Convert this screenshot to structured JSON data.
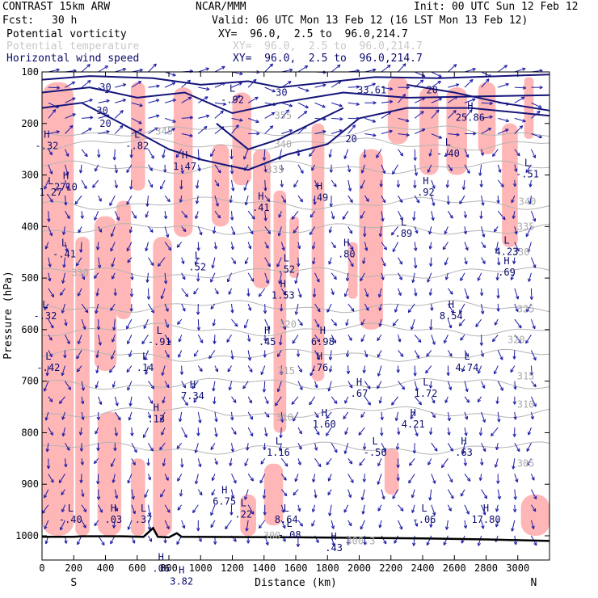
{
  "header": {
    "model": "CONTRAST 15km ARW",
    "org": "NCAR/MMM",
    "init": "Init: 00 UTC Sun 12 Feb 12",
    "fcst_label": "Fcst:",
    "fcst_value": "30 h",
    "valid": "Valid: 06 UTC Mon 13 Feb 12 (16 LST Mon 13 Feb 12)"
  },
  "fields": [
    {
      "name": "Potential vorticity",
      "xy": "XY=  96.0,  2.5 to  96.0,214.7",
      "color": "#000000"
    },
    {
      "name": "Potential temperature",
      "xy": "XY=  96.0,  2.5 to  96.0,214.7",
      "color": "#c8c8c8"
    },
    {
      "name": "Horizontal wind speed",
      "xy": "XY=  96.0,  2.5 to  96.0,214.7",
      "color": "#0a0a6e"
    }
  ],
  "colors": {
    "pv_fill": "#ffb6b6",
    "theta_contour": "#b4b4b4",
    "wind_vector": "#1a1aa6",
    "wind_contour": "#14147a",
    "terrain": "#000000"
  },
  "chart_data": {
    "type": "cross-section",
    "ylabel": "Pressure (hPa)",
    "xlabel": "Distance (km)",
    "x_end_labels": {
      "left": "S",
      "right": "N"
    },
    "xlim": [
      0,
      3200
    ],
    "ylim": [
      1050,
      100
    ],
    "x_ticks": [
      0,
      200,
      400,
      600,
      800,
      1000,
      1200,
      1400,
      1600,
      1800,
      2000,
      2200,
      2400,
      2600,
      2800,
      3000
    ],
    "y_ticks": [
      100,
      200,
      300,
      400,
      500,
      600,
      700,
      800,
      900,
      1000
    ],
    "pv_regions": [
      {
        "x": [
          0,
          200
        ],
        "p": [
          120,
          1000
        ]
      },
      {
        "x": [
          210,
          300
        ],
        "p": [
          420,
          1000
        ]
      },
      {
        "x": [
          330,
          470
        ],
        "p": [
          380,
          680
        ]
      },
      {
        "x": [
          470,
          560
        ],
        "p": [
          350,
          580
        ]
      },
      {
        "x": [
          560,
          650
        ],
        "p": [
          120,
          330
        ]
      },
      {
        "x": [
          700,
          820
        ],
        "p": [
          420,
          1000
        ]
      },
      {
        "x": [
          830,
          950
        ],
        "p": [
          130,
          420
        ]
      },
      {
        "x": [
          1070,
          1180
        ],
        "p": [
          240,
          400
        ]
      },
      {
        "x": [
          1200,
          1320
        ],
        "p": [
          140,
          320
        ]
      },
      {
        "x": [
          1330,
          1440
        ],
        "p": [
          250,
          520
        ]
      },
      {
        "x": [
          1460,
          1540
        ],
        "p": [
          330,
          800
        ]
      },
      {
        "x": [
          1560,
          1620
        ],
        "p": [
          380,
          500
        ]
      },
      {
        "x": [
          1700,
          1780
        ],
        "p": [
          200,
          700
        ]
      },
      {
        "x": [
          2000,
          2150
        ],
        "p": [
          250,
          600
        ]
      },
      {
        "x": [
          2180,
          2310
        ],
        "p": [
          110,
          240
        ]
      },
      {
        "x": [
          2380,
          2500
        ],
        "p": [
          130,
          300
        ]
      },
      {
        "x": [
          2550,
          2680
        ],
        "p": [
          130,
          300
        ]
      },
      {
        "x": [
          2750,
          2860
        ],
        "p": [
          120,
          260
        ]
      },
      {
        "x": [
          2900,
          3000
        ],
        "p": [
          200,
          440
        ]
      },
      {
        "x": [
          3040,
          3100
        ],
        "p": [
          110,
          230
        ]
      },
      {
        "x": [
          350,
          500
        ],
        "p": [
          760,
          1000
        ]
      },
      {
        "x": [
          560,
          650
        ],
        "p": [
          850,
          1000
        ]
      },
      {
        "x": [
          1250,
          1350
        ],
        "p": [
          920,
          1000
        ]
      },
      {
        "x": [
          1400,
          1520
        ],
        "p": [
          860,
          980
        ]
      },
      {
        "x": [
          2160,
          2250
        ],
        "p": [
          830,
          920
        ]
      },
      {
        "x": [
          1930,
          1990
        ],
        "p": [
          430,
          540
        ]
      },
      {
        "x": [
          3020,
          3200
        ],
        "p": [
          920,
          1000
        ]
      }
    ],
    "theta_contours": [
      {
        "level": "345",
        "p": 215,
        "label_x": 770
      },
      {
        "level": "340",
        "p": 240,
        "label_x": 1520
      },
      {
        "level": "335",
        "p": 285,
        "label_x": 1530
      },
      {
        "level": "330",
        "p": 355,
        "label_x": 1480
      },
      {
        "level": "325",
        "p": 405,
        "label_x": 1480
      },
      {
        "level": "320",
        "p": 490,
        "label_x": 160
      },
      {
        "level": "315",
        "p": 555,
        "label_x": 1620
      },
      {
        "level": "310",
        "p": 600,
        "label_x": 2990
      },
      {
        "level": "305",
        "p": 650,
        "label_x": 2350
      },
      {
        "level": "300",
        "p": 705,
        "label_x": 1470
      },
      {
        "level": "295",
        "p": 760,
        "label_x": 1540
      },
      {
        "level": "290",
        "p": 830,
        "label_x": 3010
      }
    ],
    "theta_labels": [
      {
        "text": "345",
        "x": 770,
        "p": 215
      },
      {
        "text": "340",
        "x": 1520,
        "p": 240
      },
      {
        "text": "340",
        "x": 3060,
        "p": 352
      },
      {
        "text": "335",
        "x": 1470,
        "p": 290
      },
      {
        "text": "335",
        "x": 3050,
        "p": 400
      },
      {
        "text": "330",
        "x": 240,
        "p": 490
      },
      {
        "text": "330",
        "x": 3020,
        "p": 450
      },
      {
        "text": "325",
        "x": 3050,
        "p": 560
      },
      {
        "text": "320",
        "x": 1550,
        "p": 590
      },
      {
        "text": "320",
        "x": 2990,
        "p": 620
      },
      {
        "text": "315",
        "x": 1540,
        "p": 680
      },
      {
        "text": "315",
        "x": 3050,
        "p": 690
      },
      {
        "text": "310",
        "x": 1530,
        "p": 770
      },
      {
        "text": "310",
        "x": 3050,
        "p": 745
      },
      {
        "text": "305",
        "x": 3050,
        "p": 860
      },
      {
        "text": "300",
        "x": 1450,
        "p": 1000
      },
      {
        "text": "300.3",
        "x": 2010,
        "p": 1010
      },
      {
        "text": "355",
        "x": 1520,
        "p": 185
      }
    ],
    "wind_contours": [
      {
        "label": "30",
        "x": 400,
        "p": 130
      },
      {
        "label": "30",
        "x": 1510,
        "p": 140
      },
      {
        "label": "30",
        "x": 380,
        "p": 175
      },
      {
        "label": "20",
        "x": 400,
        "p": 200
      },
      {
        "label": "20",
        "x": 1950,
        "p": 230
      },
      {
        "label": "33.61",
        "x": 2080,
        "p": 135
      },
      {
        "label": "20",
        "x": 2460,
        "p": 135
      }
    ],
    "extrema": [
      {
        "type": "H",
        "value": "-.32",
        "x": 30,
        "p": 250
      },
      {
        "type": "H",
        "value": "2710",
        "x": 150,
        "p": 330
      },
      {
        "type": "L",
        "value": "1.27",
        "x": 55,
        "p": 340
      },
      {
        "type": "L",
        "value": "-.41",
        "x": 140,
        "p": 460
      },
      {
        "type": "L",
        "value": "-.82",
        "x": 600,
        "p": 250
      },
      {
        "type": "H",
        "value": "1.47",
        "x": 900,
        "p": 290
      },
      {
        "type": "L",
        "value": "-.92",
        "x": 1200,
        "p": 160
      },
      {
        "type": "L",
        "value": ".52",
        "x": 980,
        "p": 485
      },
      {
        "type": "H",
        "value": ".41",
        "x": 1380,
        "p": 370
      },
      {
        "type": "H",
        "value": ".49",
        "x": 1750,
        "p": 350
      },
      {
        "type": "L",
        "value": ".52",
        "x": 1540,
        "p": 490
      },
      {
        "type": "H",
        "value": "1.53",
        "x": 1520,
        "p": 540
      },
      {
        "type": "H",
        "value": ".80",
        "x": 1920,
        "p": 460
      },
      {
        "type": "L",
        "value": ".89",
        "x": 2280,
        "p": 420
      },
      {
        "type": "H",
        "value": ".92",
        "x": 2420,
        "p": 340
      },
      {
        "type": "L",
        "value": "-.40",
        "x": 2560,
        "p": 265
      },
      {
        "type": "L",
        "value": "-.51",
        "x": 3060,
        "p": 305
      },
      {
        "type": "H",
        "value": "25.86",
        "x": 2700,
        "p": 195
      },
      {
        "type": "L",
        "value": "4.23",
        "x": 2930,
        "p": 455
      },
      {
        "type": "H",
        "value": ".69",
        "x": 2930,
        "p": 495
      },
      {
        "type": "H",
        "value": "8.54",
        "x": 2580,
        "p": 580
      },
      {
        "type": "L",
        "value": "-.32",
        "x": 20,
        "p": 580
      },
      {
        "type": "L",
        "value": "-.91",
        "x": 740,
        "p": 630
      },
      {
        "type": "H",
        "value": ".45",
        "x": 1420,
        "p": 630
      },
      {
        "type": "H",
        "value": "6.98",
        "x": 1770,
        "p": 630
      },
      {
        "type": "L",
        "value": "4.74",
        "x": 2680,
        "p": 680
      },
      {
        "type": "L",
        "value": "-.42",
        "x": 40,
        "p": 680
      },
      {
        "type": "L",
        "value": ".14",
        "x": 650,
        "p": 680
      },
      {
        "type": "H",
        "value": "7.34",
        "x": 950,
        "p": 735
      },
      {
        "type": "H",
        "value": ".76",
        "x": 1750,
        "p": 680
      },
      {
        "type": "H",
        "value": ".67",
        "x": 2000,
        "p": 730
      },
      {
        "type": "L",
        "value": "1.72",
        "x": 2420,
        "p": 730
      },
      {
        "type": "H",
        "value": ".13",
        "x": 720,
        "p": 780
      },
      {
        "type": "H",
        "value": "1.60",
        "x": 1780,
        "p": 790
      },
      {
        "type": "H",
        "value": "4.21",
        "x": 2340,
        "p": 790
      },
      {
        "type": "L",
        "value": "1.16",
        "x": 1490,
        "p": 845
      },
      {
        "type": "L",
        "value": "-.56",
        "x": 2100,
        "p": 845
      },
      {
        "type": "H",
        "value": ".63",
        "x": 2660,
        "p": 845
      },
      {
        "type": "H",
        "value": "6.75",
        "x": 1150,
        "p": 940
      },
      {
        "type": "L",
        "value": ".22",
        "x": 1270,
        "p": 965
      },
      {
        "type": "L",
        "value": "-.40",
        "x": 180,
        "p": 975
      },
      {
        "type": "H",
        "value": ".03",
        "x": 450,
        "p": 975
      },
      {
        "type": "L",
        "value": ".37",
        "x": 640,
        "p": 975
      },
      {
        "type": "L",
        "value": "8.64",
        "x": 1540,
        "p": 975
      },
      {
        "type": "L",
        "value": "-.08",
        "x": 1560,
        "p": 1005
      },
      {
        "type": "H",
        "value": ".43",
        "x": 1840,
        "p": 1030
      },
      {
        "type": "L",
        "value": "-.06",
        "x": 2410,
        "p": 975
      },
      {
        "type": "H",
        "value": "17.80",
        "x": 2800,
        "p": 975
      },
      {
        "type": "H",
        "value": ".06",
        "x": 750,
        "p": 1070
      },
      {
        "type": "H",
        "value": "3.82",
        "x": 880,
        "p": 1095
      }
    ],
    "terrain": [
      [
        0,
        1002
      ],
      [
        200,
        1002
      ],
      [
        250,
        1001
      ],
      [
        500,
        1001
      ],
      [
        640,
        1002
      ],
      [
        700,
        985
      ],
      [
        730,
        1002
      ],
      [
        800,
        1003
      ],
      [
        850,
        995
      ],
      [
        880,
        1002
      ],
      [
        1600,
        1003
      ],
      [
        2400,
        1005
      ],
      [
        2800,
        1007
      ],
      [
        3200,
        1010
      ]
    ]
  }
}
